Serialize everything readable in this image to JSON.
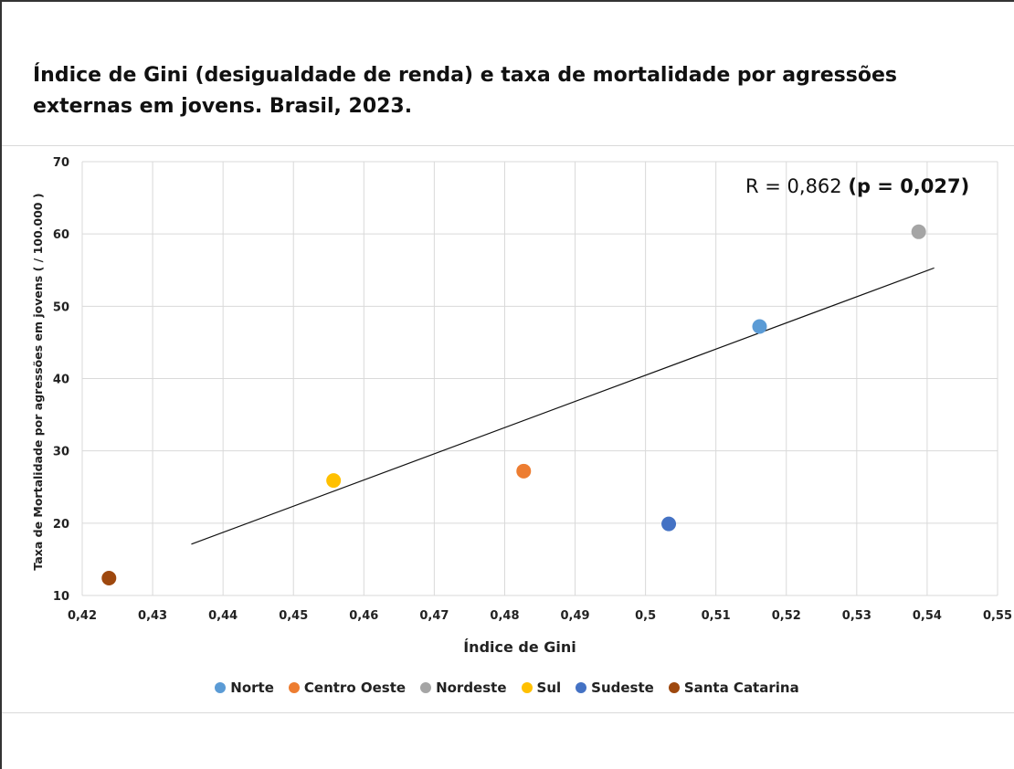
{
  "chart_data": {
    "type": "scatter",
    "title": "Índice de Gini (desigualdade de renda) e taxa de mortalidade por agressões externas em jovens. Brasil, 2023.",
    "xlabel": "Índice de Gini",
    "ylabel": "Taxa de Mortalidade por agressões  em jovens ( / 100.000 )",
    "xlim": [
      0.42,
      0.55
    ],
    "ylim": [
      10,
      70
    ],
    "x_ticks": [
      "0,42",
      "0,43",
      "0,44",
      "0,45",
      "0,46",
      "0,47",
      "0,48",
      "0,49",
      "0,5",
      "0,51",
      "0,52",
      "0,53",
      "0,54",
      "0,55"
    ],
    "y_ticks": [
      "10",
      "20",
      "30",
      "40",
      "50",
      "60",
      "70"
    ],
    "grid": true,
    "legend_position": "bottom",
    "annotation": {
      "plain": "R = 0,862 ",
      "bold": "(p = 0,027)"
    },
    "trendline": {
      "x": [
        0.4355,
        0.541
      ],
      "y": [
        17.1,
        55.3
      ]
    },
    "series": [
      {
        "name": "Norte",
        "x": 0.5162,
        "y": 47.2,
        "color": "#5B9BD5"
      },
      {
        "name": "Centro Oeste",
        "x": 0.4827,
        "y": 27.2,
        "color": "#ED7D31"
      },
      {
        "name": "Nordeste",
        "x": 0.5388,
        "y": 60.3,
        "color": "#A5A5A5"
      },
      {
        "name": "Sul",
        "x": 0.4557,
        "y": 25.9,
        "color": "#FFC000"
      },
      {
        "name": "Sudeste",
        "x": 0.5033,
        "y": 19.9,
        "color": "#4472C4"
      },
      {
        "name": "Santa Catarina",
        "x": 0.4238,
        "y": 12.4,
        "color": "#9E480E"
      }
    ]
  }
}
